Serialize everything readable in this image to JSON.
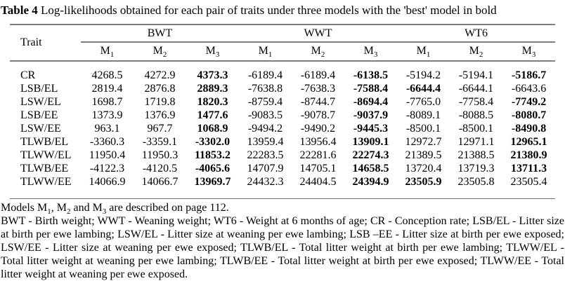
{
  "title": {
    "label": "Table 4",
    "text": " Log-likelihoods obtained for each pair of traits under three models with the 'best' model in bold"
  },
  "table": {
    "trait_header": "Trait",
    "groups": [
      {
        "label": "BWT"
      },
      {
        "label": "WWT"
      },
      {
        "label": "WT6"
      }
    ],
    "models": [
      {
        "base": "M",
        "sub": "1"
      },
      {
        "base": "M",
        "sub": "2"
      },
      {
        "base": "M",
        "sub": "3"
      }
    ],
    "rows": [
      {
        "trait": "CR",
        "values": [
          "4268.5",
          "4272.9",
          "4373.3",
          "-6189.4",
          "-6189.4",
          "-6138.5",
          "-5194.2",
          "-5194.1",
          "-5186.7"
        ],
        "bold": [
          2,
          5,
          8
        ]
      },
      {
        "trait": "LSB/EL",
        "values": [
          "2819.4",
          "2876.8",
          "2889.3",
          "-7638.8",
          "-7638.3",
          "-7588.4",
          "-6644.4",
          "-6644.1",
          "-6643.6"
        ],
        "bold": [
          2,
          5,
          6
        ]
      },
      {
        "trait": "LSW/EL",
        "values": [
          "1698.7",
          "1719.8",
          "1820.3",
          "-8759.4",
          "-8744.7",
          "-8694.4",
          "-7765.0",
          "-7758.4",
          "-7749.2"
        ],
        "bold": [
          2,
          5,
          8
        ]
      },
      {
        "trait": "LSB/EE",
        "values": [
          "1373.9",
          "1376.9",
          "1477.6",
          "-9083.5",
          "-9078.7",
          "-9037.9",
          "-8089.1",
          "-8088.5",
          "-8080.7"
        ],
        "bold": [
          2,
          5,
          8
        ]
      },
      {
        "trait": "LSW/EE",
        "values": [
          "963.1",
          "967.7",
          "1068.9",
          "-9494.2",
          "-9490.2",
          "-9445.3",
          "-8500.1",
          "-8500.1",
          "-8490.8"
        ],
        "bold": [
          2,
          5,
          8
        ]
      },
      {
        "trait": "TLWB/EL",
        "values": [
          "-3360.3",
          "-3359.1",
          "-3302.0",
          "13959.4",
          "13956.4",
          "13909.1",
          "12972.7",
          "12971.1",
          "12965.1"
        ],
        "bold": [
          2,
          5,
          8
        ]
      },
      {
        "trait": "TLWW/EL",
        "values": [
          "11950.4",
          "11950.3",
          "11853.2",
          "22283.5",
          "22281.6",
          "22274.3",
          "21389.5",
          "21388.5",
          "21380.9"
        ],
        "bold": [
          2,
          5,
          8
        ]
      },
      {
        "trait": "TLWB/EE",
        "values": [
          "-4122.3",
          "-4120.5",
          "-4065.6",
          "14707.9",
          "14705.1",
          "14658.5",
          "13720.4",
          "13719.3",
          "13711.3"
        ],
        "bold": [
          2,
          5,
          8
        ]
      },
      {
        "trait": "TLWW/EE",
        "values": [
          "14066.9",
          "14066.7",
          "13969.7",
          "24432.3",
          "24404.5",
          "24394.9",
          "23505.9",
          "23505.8",
          "23505.4"
        ],
        "bold": [
          2,
          5,
          6
        ]
      }
    ]
  },
  "footnotes": {
    "models_note": [
      {
        "t": "Models M"
      },
      {
        "sub": "1"
      },
      {
        "t": ", M"
      },
      {
        "sub": "2"
      },
      {
        "t": " and M"
      },
      {
        "sub": "3"
      },
      {
        "t": " are described on page 112."
      }
    ],
    "abbreviations": "BWT - Birth weight; WWT - Weaning weight; WT6 - Weight at 6 months of age; CR - Conception rate; LSB/EL - Litter size at birth per ewe lambing; LSW/EL - Litter size at weaning per ewe lambing; LSB –EE - Litter size at birth per ewe exposed; LSW/EE - Litter size at weaning per ewe exposed; TLWB/EL - Total litter weight at birth per ewe lambing; TLWW/EL - Total litter weight at weaning per ewe lambing; TLWB/EE - Total litter weight at birth per ewe exposed; TLWW/EE - Total litter weight at weaning per ewe exposed."
  }
}
